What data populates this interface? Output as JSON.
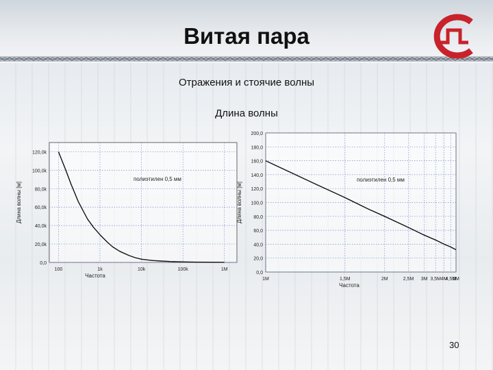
{
  "slide": {
    "title": "Витая пара",
    "subtitle": "Отражения и стоячие волны",
    "section": "Длина волны",
    "page_number": "30"
  },
  "colors": {
    "logo_red": "#c8232b",
    "curve": "#111111",
    "grid": "#7a8fd0"
  },
  "icons": {
    "logo": "company-logo-icon"
  },
  "chart_data": [
    {
      "type": "line",
      "xlabel": "Частота",
      "ylabel": "Длина волны [м]",
      "x_scale": "log",
      "xlim": [
        60,
        2000000
      ],
      "ylim": [
        0,
        130000
      ],
      "x_ticks": [
        {
          "v": 100,
          "label": "100"
        },
        {
          "v": 1000,
          "label": "1k"
        },
        {
          "v": 10000,
          "label": "10k"
        },
        {
          "v": 100000,
          "label": "100k"
        },
        {
          "v": 1000000,
          "label": "1M"
        }
      ],
      "y_ticks": [
        {
          "v": 0,
          "label": "0,0"
        },
        {
          "v": 20000,
          "label": "20,0k"
        },
        {
          "v": 40000,
          "label": "40,0k"
        },
        {
          "v": 60000,
          "label": "60,0k"
        },
        {
          "v": 80000,
          "label": "80,0k"
        },
        {
          "v": 100000,
          "label": "100,0k"
        },
        {
          "v": 120000,
          "label": "120,0k"
        }
      ],
      "annotation": "полиэтилен 0,5 мм",
      "series": [
        {
          "x": [
            100,
            150,
            200,
            300,
            500,
            700,
            1000,
            1500,
            2000,
            3000,
            5000,
            7000,
            10000,
            15000,
            20000,
            30000,
            50000,
            100000,
            200000,
            500000,
            1000000
          ],
          "y": [
            120000,
            100000,
            85000,
            66000,
            47000,
            38000,
            30000,
            22000,
            17000,
            12000,
            7500,
            5200,
            3500,
            2500,
            2000,
            1500,
            1000,
            600,
            300,
            200,
            150
          ]
        }
      ]
    },
    {
      "type": "line",
      "xlabel": "Частота",
      "ylabel": "Длина волны [м]",
      "x_scale": "reciprocal",
      "xlim": [
        1000000,
        5000000
      ],
      "ylim": [
        0,
        200
      ],
      "x_ticks": [
        {
          "v": 1000000,
          "label": "1M"
        },
        {
          "v": 1500000,
          "label": "1,5M"
        },
        {
          "v": 2000000,
          "label": "2M"
        },
        {
          "v": 2500000,
          "label": "2,5M"
        },
        {
          "v": 3000000,
          "label": "3M"
        },
        {
          "v": 3500000,
          "label": "3,5M"
        },
        {
          "v": 4000000,
          "label": "4M"
        },
        {
          "v": 4500000,
          "label": "4,5M"
        },
        {
          "v": 5000000,
          "label": "5M"
        }
      ],
      "y_ticks": [
        {
          "v": 0,
          "label": "0,0"
        },
        {
          "v": 20,
          "label": "20,0"
        },
        {
          "v": 40,
          "label": "40,0"
        },
        {
          "v": 60,
          "label": "60,0"
        },
        {
          "v": 80,
          "label": "80,0"
        },
        {
          "v": 100,
          "label": "100,0"
        },
        {
          "v": 120,
          "label": "120,0"
        },
        {
          "v": 140,
          "label": "140,0"
        },
        {
          "v": 160,
          "label": "160,0"
        },
        {
          "v": 180,
          "label": "180,0"
        },
        {
          "v": 200,
          "label": "200,0"
        }
      ],
      "annotation": "полиэтилен 0,5 мм",
      "series": [
        {
          "x": [
            1000000,
            1250000,
            1500000,
            1750000,
            2000000,
            2500000,
            3000000,
            3500000,
            4000000,
            4500000,
            5000000
          ],
          "y": [
            160,
            128,
            107,
            91,
            80,
            64,
            53,
            46,
            40,
            36,
            32
          ]
        }
      ]
    }
  ]
}
